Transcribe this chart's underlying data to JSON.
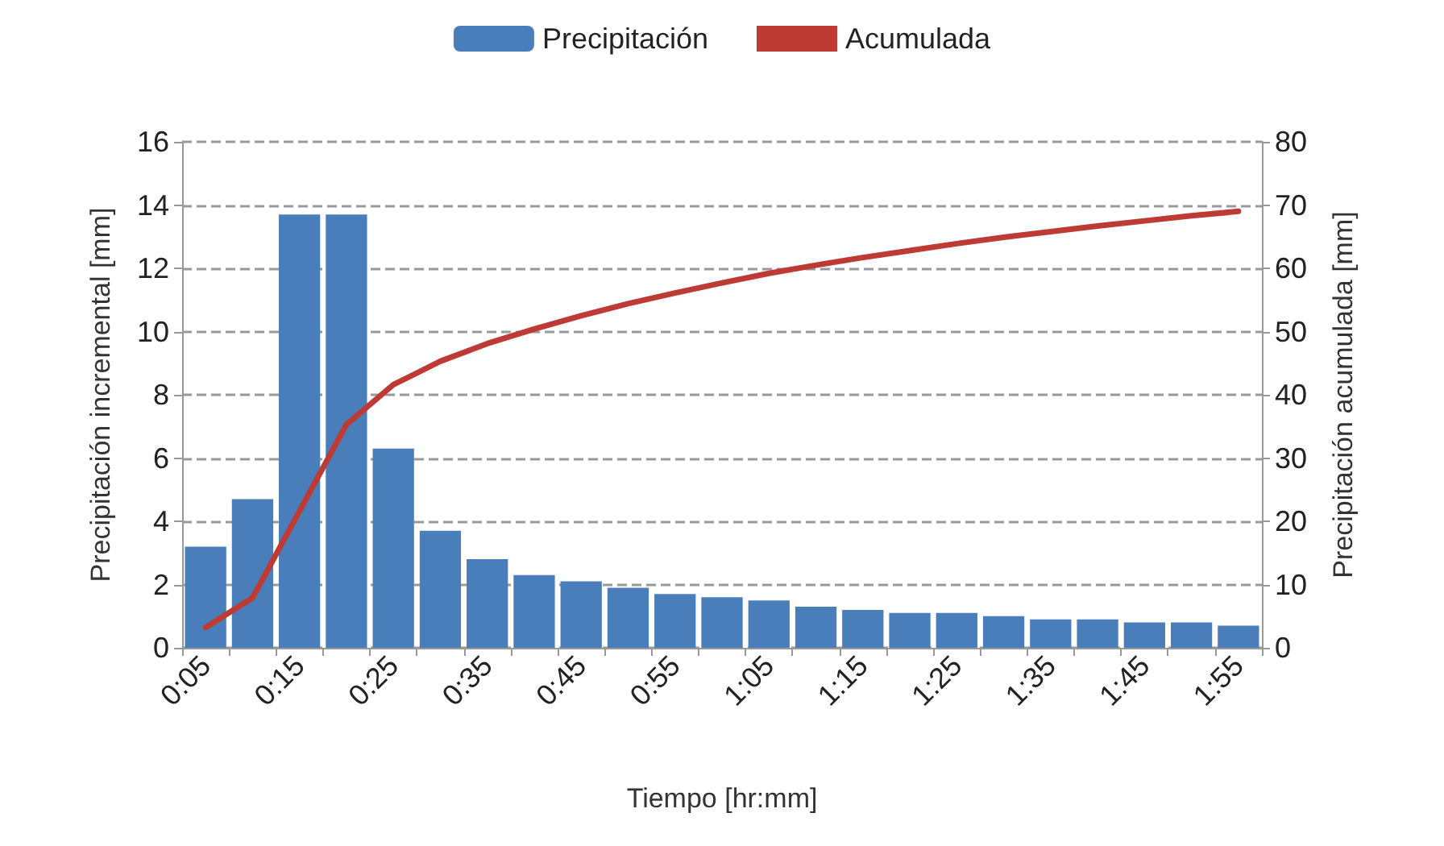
{
  "chart_data": {
    "type": "bar",
    "xlabel": "Tiempo [hr:mm]",
    "ylabel": "Precipitación incremental [mm]",
    "y2label": "Precipitación acumulada [mm]",
    "categories": [
      "0:05",
      null,
      "0:15",
      null,
      "0:25",
      null,
      "0:35",
      null,
      "0:45",
      null,
      "0:55",
      null,
      "1:05",
      null,
      "1:15",
      null,
      "1:25",
      null,
      "1:35",
      null,
      "1:45",
      null,
      "1:55"
    ],
    "series": [
      {
        "name": "Precipitación",
        "type": "bar",
        "color": "#4a7ebb",
        "values": [
          3.2,
          4.7,
          13.7,
          13.7,
          6.3,
          3.7,
          2.8,
          2.3,
          2.1,
          1.9,
          1.7,
          1.6,
          1.5,
          1.3,
          1.2,
          1.1,
          1.1,
          1.0,
          0.9,
          0.9,
          0.8,
          0.8,
          0.7
        ]
      },
      {
        "name": "Acumulada",
        "type": "line",
        "axis": "y2",
        "color": "#be3a34",
        "values": [
          3.2,
          7.9,
          21.6,
          35.3,
          41.6,
          45.3,
          48.1,
          50.4,
          52.5,
          54.4,
          56.1,
          57.7,
          59.2,
          60.5,
          61.7,
          62.8,
          63.9,
          64.9,
          65.8,
          66.7,
          67.5,
          68.3,
          69.0
        ]
      }
    ],
    "ylim": [
      0,
      16
    ],
    "yticks": [
      0,
      2,
      4,
      6,
      8,
      10,
      12,
      14,
      16
    ],
    "y2lim": [
      0,
      80
    ],
    "y2ticks": [
      0,
      10,
      20,
      30,
      40,
      50,
      60,
      70,
      80
    ],
    "grid": "y",
    "legend": "top",
    "marker": "none",
    "line_style": "solid"
  }
}
